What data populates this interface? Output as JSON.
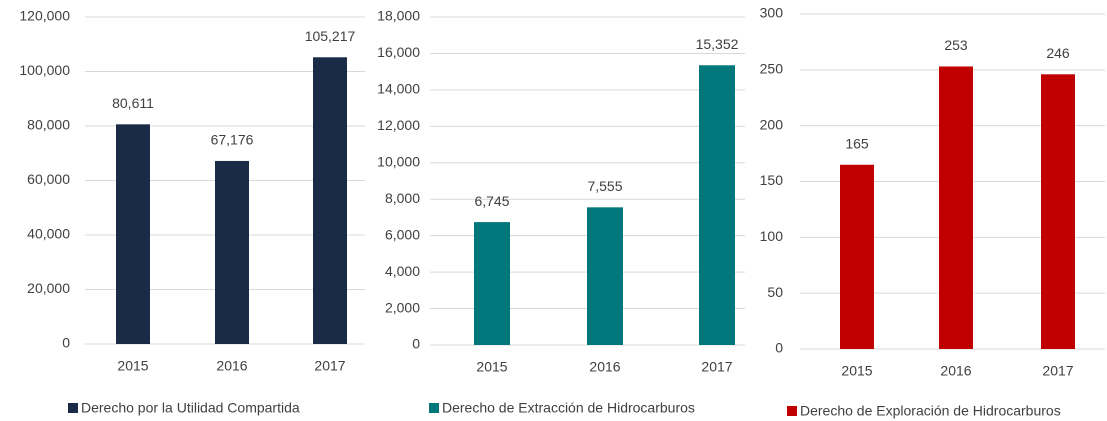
{
  "chart_data": [
    {
      "type": "bar",
      "categories": [
        "2015",
        "2016",
        "2017"
      ],
      "series": [
        {
          "name": "Derecho por la Utilidad Compartida",
          "color": "#1a2b47",
          "values": [
            80611,
            67176,
            105217
          ],
          "value_labels": [
            "80,611",
            "67,176",
            "105,217"
          ]
        }
      ],
      "ylim": [
        0,
        120000
      ],
      "yticks": [
        0,
        {
          "value": 20000,
          "label": "20,000"
        },
        {
          "value": 40000,
          "label": "40,000"
        },
        {
          "value": 60000,
          "label": "60,000"
        },
        {
          "value": 80000,
          "label": "80,000"
        },
        {
          "value": 100000,
          "label": "100,000"
        },
        {
          "value": 120000,
          "label": "120,000"
        }
      ],
      "grid": true
    },
    {
      "type": "bar",
      "categories": [
        "2015",
        "2016",
        "2017"
      ],
      "series": [
        {
          "name": "Derecho de Extracción de Hidrocarburos",
          "color": "#00777a",
          "values": [
            6745,
            7555,
            15352
          ],
          "value_labels": [
            "6,745",
            "7,555",
            "15,352"
          ]
        }
      ],
      "ylim": [
        0,
        18000
      ],
      "yticks": [
        0,
        {
          "value": 2000,
          "label": "2,000"
        },
        {
          "value": 4000,
          "label": "4,000"
        },
        {
          "value": 6000,
          "label": "6,000"
        },
        {
          "value": 8000,
          "label": "8,000"
        },
        {
          "value": 10000,
          "label": "10,000"
        },
        {
          "value": 12000,
          "label": "12,000"
        },
        {
          "value": 14000,
          "label": "14,000"
        },
        {
          "value": 16000,
          "label": "16,000"
        },
        {
          "value": 18000,
          "label": "18,000"
        }
      ],
      "grid": true
    },
    {
      "type": "bar",
      "categories": [
        "2015",
        "2016",
        "2017"
      ],
      "series": [
        {
          "name": "Derecho de Exploración de Hidrocarburos",
          "color": "#c00000",
          "values": [
            165,
            253,
            246
          ]
        }
      ],
      "ylim": [
        0,
        300
      ],
      "yticks": [
        0,
        50,
        100,
        150,
        200,
        250,
        300
      ],
      "grid": true
    }
  ]
}
